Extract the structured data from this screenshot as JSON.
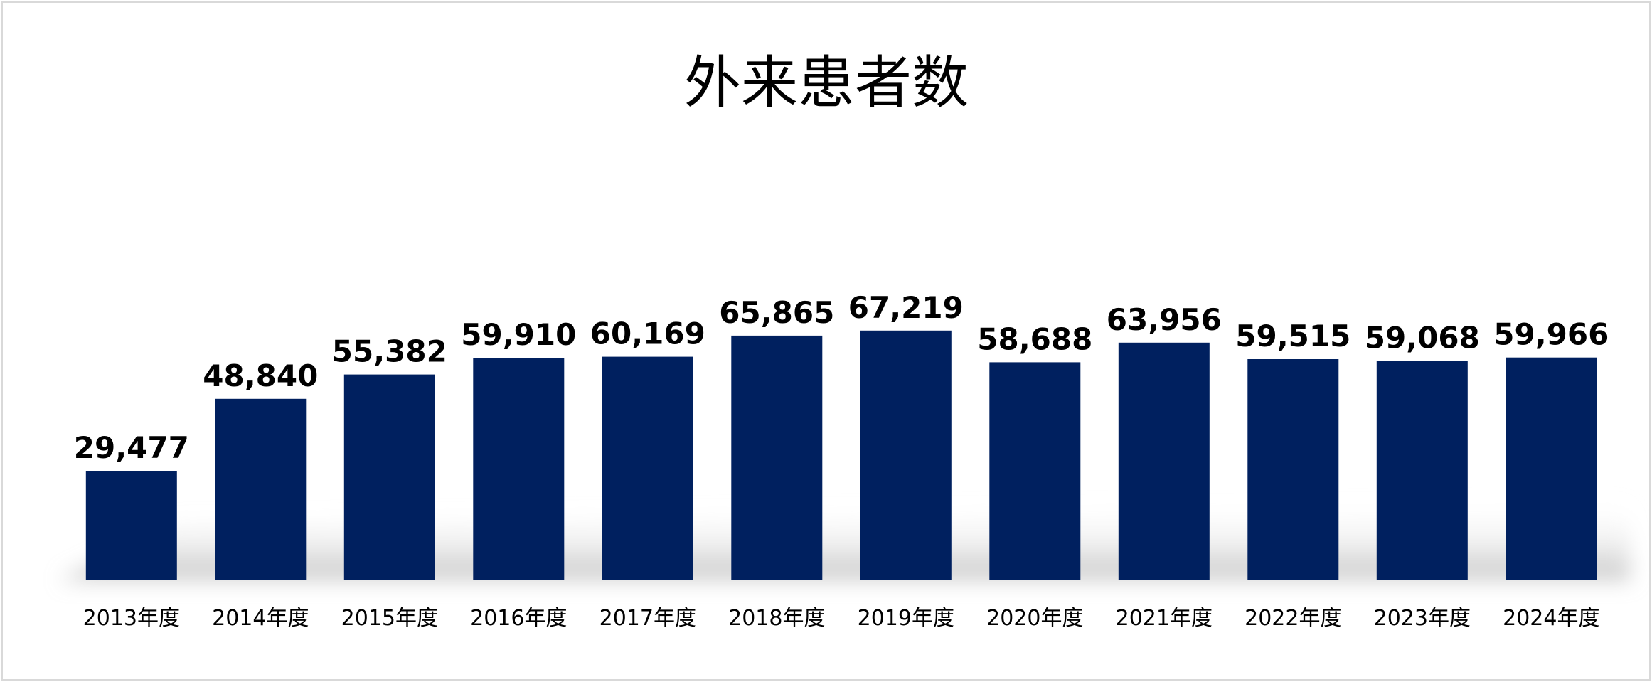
{
  "colors": {
    "bar": "#00205f",
    "shadow": "#bfbfbf",
    "frame": "#d9d9d9"
  },
  "chart_data": {
    "type": "bar",
    "title": "外来患者数",
    "xlabel": "",
    "ylabel": "",
    "ylim": [
      0,
      75000
    ],
    "grid": false,
    "legend": "none",
    "categories": [
      "2013年度",
      "2014年度",
      "2015年度",
      "2016年度",
      "2017年度",
      "2018年度",
      "2019年度",
      "2020年度",
      "2021年度",
      "2022年度",
      "2023年度",
      "2024年度"
    ],
    "values": [
      29477,
      48840,
      55382,
      59910,
      60169,
      65865,
      67219,
      58688,
      63956,
      59515,
      59068,
      59966
    ],
    "value_labels": [
      "29,477",
      "48,840",
      "55,382",
      "59,910",
      "60,169",
      "65,865",
      "67,219",
      "58,688",
      "63,956",
      "59,515",
      "59,068",
      "59,966"
    ]
  }
}
